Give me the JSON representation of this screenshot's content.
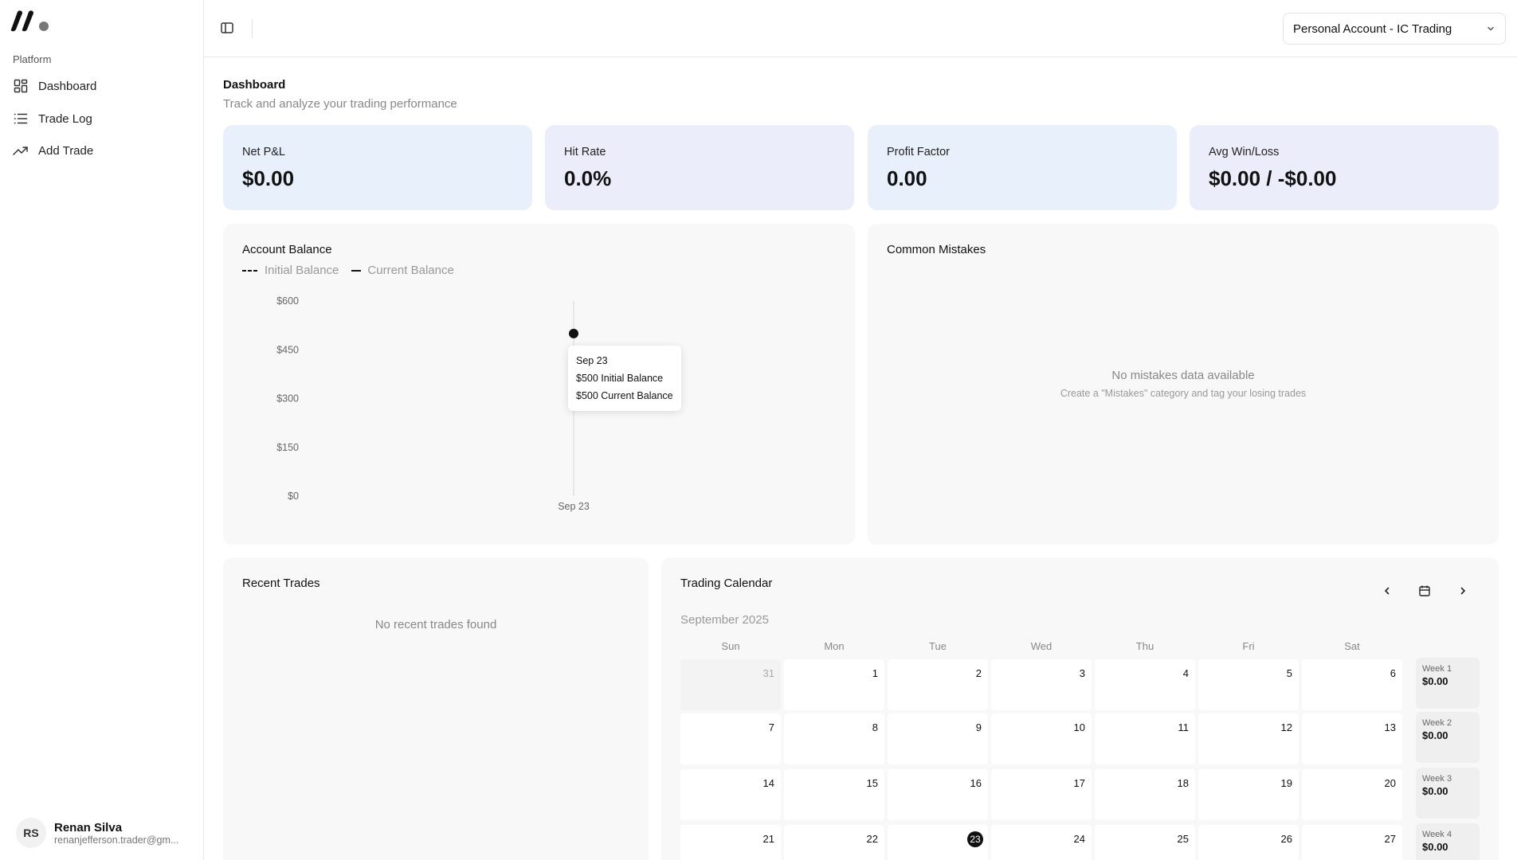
{
  "sidebar": {
    "section_label": "Platform",
    "items": [
      {
        "label": "Dashboard",
        "icon": "grid-icon"
      },
      {
        "label": "Trade Log",
        "icon": "list-icon"
      },
      {
        "label": "Add Trade",
        "icon": "trending-up-icon"
      }
    ],
    "user": {
      "initials": "RS",
      "name": "Renan Silva",
      "email": "renanjefferson.trader@gm..."
    }
  },
  "header": {
    "account": "Personal Account - IC Trading"
  },
  "page": {
    "title": "Dashboard",
    "subtitle": "Track and analyze your trading performance"
  },
  "stats": [
    {
      "label": "Net P&L",
      "value": "$0.00"
    },
    {
      "label": "Hit Rate",
      "value": "0.0%"
    },
    {
      "label": "Profit Factor",
      "value": "0.00"
    },
    {
      "label": "Avg Win/Loss",
      "value": "$0.00 / -$0.00"
    }
  ],
  "account_balance": {
    "title": "Account Balance",
    "legend": [
      "Initial Balance",
      "Current Balance"
    ],
    "tooltip": {
      "date": "Sep 23",
      "initial": "$500 Initial Balance",
      "current": "$500 Current Balance"
    }
  },
  "chart_data": {
    "type": "line",
    "title": "Account Balance",
    "xlabel": "",
    "ylabel": "",
    "x": [
      "Sep 23"
    ],
    "series": [
      {
        "name": "Initial Balance",
        "values": [
          500
        ]
      },
      {
        "name": "Current Balance",
        "values": [
          500
        ]
      }
    ],
    "yticks": [
      "$0",
      "$150",
      "$300",
      "$450",
      "$600"
    ],
    "ylim": [
      0,
      600
    ],
    "grid": false,
    "legend_position": "top-left"
  },
  "common_mistakes": {
    "title": "Common Mistakes",
    "empty": "No mistakes data available",
    "hint": "Create a \"Mistakes\" category and tag your losing trades"
  },
  "recent_trades": {
    "title": "Recent Trades",
    "empty": "No recent trades found"
  },
  "calendar": {
    "title": "Trading Calendar",
    "month": "September 2025",
    "weekdays": [
      "Sun",
      "Mon",
      "Tue",
      "Wed",
      "Thu",
      "Fri",
      "Sat"
    ],
    "weeks": [
      {
        "label": "Week 1",
        "value": "$0.00",
        "days": [
          "31",
          "1",
          "2",
          "3",
          "4",
          "5",
          "6"
        ]
      },
      {
        "label": "Week 2",
        "value": "$0.00",
        "days": [
          "7",
          "8",
          "9",
          "10",
          "11",
          "12",
          "13"
        ]
      },
      {
        "label": "Week 3",
        "value": "$0.00",
        "days": [
          "14",
          "15",
          "16",
          "17",
          "18",
          "19",
          "20"
        ]
      },
      {
        "label": "Week 4",
        "value": "$0.00",
        "days": [
          "21",
          "22",
          "23",
          "24",
          "25",
          "26",
          "27"
        ]
      }
    ],
    "muted_day": "31",
    "today": "23"
  }
}
